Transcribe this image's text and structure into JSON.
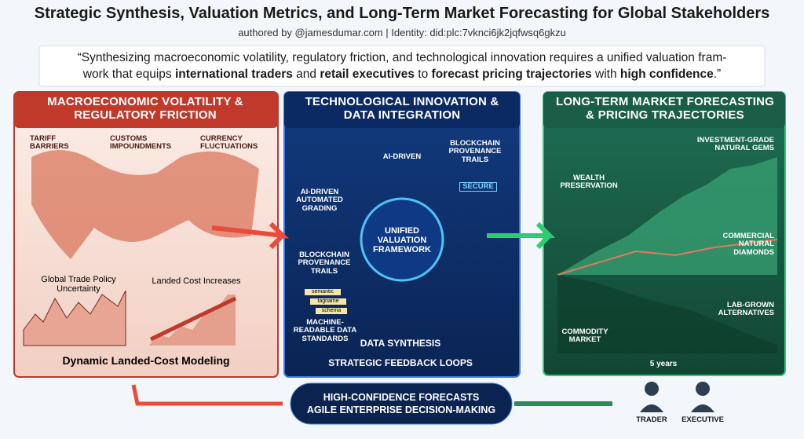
{
  "header": {
    "title": "Strategic Synthesis, Valuation Metrics, and Long-Term Market Forecasting for Global Stakeholders",
    "byline": "authored by @jamesdumar.com  |  Identity: did:plc:7vknci6jk2jqfwsq6gkzu"
  },
  "quote": {
    "lines": [
      [
        {
          "text": "“Synthesizing macroeconomic volatility, regulatory friction, and technological innovation requires a unified valuation fram-",
          "bold": false
        }
      ],
      [
        {
          "text": "work that equips ",
          "bold": false
        },
        {
          "text": "international traders",
          "bold": true
        },
        {
          "text": " and ",
          "bold": false
        },
        {
          "text": "retail executives",
          "bold": true
        },
        {
          "text": " to ",
          "bold": false
        },
        {
          "text": "forecast pricing trajectories",
          "bold": true
        },
        {
          "text": " with ",
          "bold": false
        },
        {
          "text": "high confidence",
          "bold": true
        },
        {
          "text": ".”",
          "bold": false
        }
      ]
    ]
  },
  "left_panel": {
    "title": "MACROECONOMIC VOLATILITY & REGULATORY FRICTION",
    "icons": [
      "TARIFF BARRIERS",
      "CUSTOMS IMPOUNDMENTS",
      "CURRENCY FLUCTUATIONS"
    ],
    "chart_labels": [
      "Global Trade Policy Uncertainty",
      "Landed Cost Increases"
    ],
    "footer": "Dynamic Landed-Cost Modeling"
  },
  "middle_panel": {
    "title": "TECHNOLOGICAL INNOVATION & DATA INTEGRATION",
    "ai_label": "AI-DRIVEN",
    "provenance_top": "BLOCKCHAIN PROVENANCE TRAILS",
    "secure": "SECURE",
    "grading": "AI-DRIVEN AUTOMATED GRADING",
    "center": "UNIFIED VALUATION FRAMEWORK",
    "provenance_left": "BLOCKCHAIN PROVENANCE TRAILS",
    "tags": [
      "semantic",
      "tagname",
      "schema"
    ],
    "standards": "MACHINE-READABLE DATA STANDARDS",
    "synthesis": "DATA SYNTHESIS",
    "feedback": "STRATEGIC FEEDBACK LOOPS"
  },
  "right_panel": {
    "title": "LONG-TERM MARKET FORECASTING & PRICING TRAJECTORIES",
    "gems": "INVESTMENT-GRADE NATURAL GEMS",
    "wealth": "WEALTH PRESERVATION",
    "diamonds": "COMMERCIAL NATURAL DIAMONDS",
    "lab": "LAB-GROWN ALTERNATIVES",
    "commodity": "COMMODITY MARKET",
    "horizon": "5 years"
  },
  "bottom": {
    "forecasts": "HIGH-CONFIDENCE FORECASTS",
    "decisions": "AGILE ENTERPRISE DECISION-MAKING",
    "roles": [
      "TRADER",
      "EXECUTIVE"
    ]
  }
}
